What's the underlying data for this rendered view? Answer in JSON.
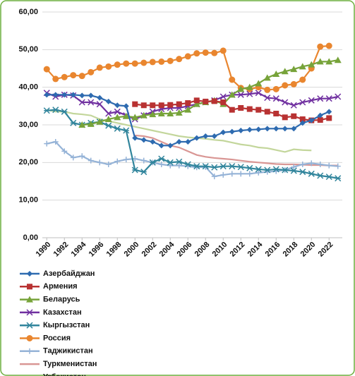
{
  "chart_data": {
    "type": "line",
    "x": [
      1990,
      1991,
      1992,
      1993,
      1994,
      1995,
      1996,
      1997,
      1998,
      1999,
      2000,
      2001,
      2002,
      2003,
      2004,
      2005,
      2006,
      2007,
      2008,
      2009,
      2010,
      2011,
      2012,
      2013,
      2014,
      2015,
      2016,
      2017,
      2018,
      2019,
      2020,
      2021,
      2022,
      2023
    ],
    "xlim": [
      1989.5,
      2023.5
    ],
    "xticks": [
      1990,
      1992,
      1994,
      1996,
      1998,
      2000,
      2002,
      2004,
      2006,
      2008,
      2010,
      2012,
      2014,
      2016,
      2018,
      2020,
      2022
    ],
    "ylim": [
      0,
      60
    ],
    "yticks": [
      {
        "value": 0,
        "label": "0,00"
      },
      {
        "value": 10,
        "label": "10,00"
      },
      {
        "value": 20,
        "label": "20,00"
      },
      {
        "value": 30,
        "label": "30,00"
      },
      {
        "value": 40,
        "label": "40,00"
      },
      {
        "value": 50,
        "label": "50,00"
      },
      {
        "value": 60,
        "label": "60,00"
      }
    ],
    "grid": true,
    "series": [
      {
        "name": "Азербайджан",
        "color": "#2e6bb0",
        "marker": "diamond",
        "values": [
          38,
          38,
          38,
          38,
          37.8,
          37.8,
          37.2,
          36.2,
          35.2,
          35,
          26.5,
          26,
          25.5,
          24.5,
          24.5,
          25.5,
          25.5,
          26.5,
          27,
          27,
          28,
          28.2,
          28.5,
          28.7,
          28.8,
          29,
          29,
          29,
          29,
          30.5,
          31.2,
          32.5,
          33.5,
          null
        ]
      },
      {
        "name": "Армения",
        "color": "#b83232",
        "marker": "square",
        "values": [
          null,
          null,
          null,
          null,
          null,
          null,
          null,
          null,
          null,
          null,
          35.5,
          35.2,
          35.2,
          35.2,
          35.3,
          35.5,
          35.8,
          36.5,
          36.2,
          36.3,
          36,
          34,
          34.5,
          34.2,
          34,
          33.5,
          33,
          32,
          32.3,
          31.5,
          31.2,
          31.3,
          31.8,
          null
        ]
      },
      {
        "name": "Беларусь",
        "color": "#77a33a",
        "marker": "triangle",
        "values": [
          null,
          null,
          null,
          null,
          30,
          30.2,
          30.8,
          31.5,
          32,
          32.3,
          32,
          32.5,
          32.8,
          33,
          33,
          33.2,
          34,
          35.5,
          36,
          36.5,
          35.5,
          38,
          39.5,
          40,
          41,
          42.5,
          43.5,
          44.2,
          44.8,
          45.5,
          46,
          46.8,
          46.8,
          47.2
        ]
      },
      {
        "name": "Казахстан",
        "color": "#7030a0",
        "marker": "cross",
        "values": [
          38.5,
          37.5,
          38,
          37.8,
          36,
          36,
          35.5,
          33,
          33.5,
          32.5,
          31.5,
          32.5,
          33.5,
          34.2,
          34.5,
          34.5,
          35,
          35.5,
          36,
          36.5,
          37.5,
          38,
          38,
          38.2,
          38.5,
          37.2,
          37,
          36,
          35.2,
          36,
          36.5,
          37,
          37,
          37.5
        ]
      },
      {
        "name": "Кыргызстан",
        "color": "#31859c",
        "marker": "star",
        "values": [
          33.8,
          34,
          33.5,
          30.5,
          30,
          30.5,
          30.8,
          29.8,
          29,
          28.5,
          18,
          17.5,
          20,
          21,
          20,
          20.2,
          19.5,
          19,
          19,
          18.7,
          19,
          19,
          18.8,
          18.5,
          18.2,
          18,
          18.2,
          18,
          17.8,
          17.5,
          17,
          16.5,
          16.2,
          15.8
        ]
      },
      {
        "name": "Россия",
        "color": "#e9862f",
        "marker": "circle",
        "values": [
          44.8,
          42.2,
          42.7,
          43.2,
          43,
          44,
          45.2,
          45.5,
          46,
          46.3,
          46.3,
          46.5,
          46.7,
          46.8,
          47,
          47.5,
          48.2,
          49,
          49.2,
          49.1,
          49.7,
          42,
          39.8,
          39.5,
          40,
          39.3,
          39.5,
          40.5,
          40.8,
          42,
          45,
          50.8,
          51,
          null
        ]
      },
      {
        "name": "Таджикистан",
        "color": "#95b3d7",
        "marker": "plus",
        "values": [
          25,
          25.5,
          23,
          21.3,
          21.7,
          20.5,
          20,
          19.5,
          20.3,
          20.8,
          21,
          20.5,
          20,
          19.5,
          19.2,
          19.2,
          19,
          18.7,
          18.8,
          16.3,
          16.7,
          17,
          17,
          17,
          17.3,
          17.5,
          17.7,
          18,
          18.8,
          19.5,
          19.8,
          19.5,
          19.2,
          19
        ]
      },
      {
        "name": "Туркменистан",
        "color": "#d99694",
        "marker": "none",
        "values": [
          null,
          null,
          null,
          null,
          null,
          null,
          null,
          null,
          null,
          null,
          27.2,
          27,
          26.5,
          25.5,
          24.5,
          24,
          23,
          22,
          21.5,
          21.2,
          21,
          20.8,
          20.5,
          20.2,
          20,
          19.8,
          19.6,
          19.5,
          19.5,
          19.4,
          19.3,
          19.3,
          19.2,
          19.2
        ]
      },
      {
        "name": "Узбекистан",
        "color": "#c3d69b",
        "marker": "none",
        "values": [
          34,
          33.5,
          33.5,
          33,
          32.8,
          32.5,
          31.5,
          31,
          30.5,
          30,
          29.5,
          29,
          28.5,
          28,
          27.5,
          27,
          26.7,
          26.5,
          26.3,
          26,
          25.8,
          25.3,
          24.8,
          24.5,
          24,
          23.8,
          23.3,
          22.8,
          23.5,
          23.3,
          23.2,
          null,
          null,
          null
        ]
      }
    ]
  }
}
